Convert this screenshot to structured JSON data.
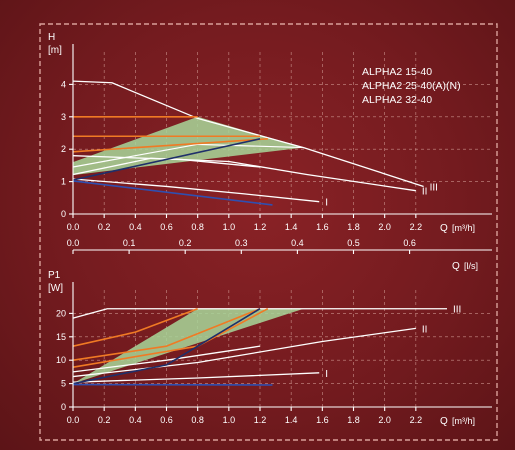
{
  "colors": {
    "background": "#741b1f",
    "zone_fill": "#a8d89a",
    "curve_white": "#ffffff",
    "curve_orange": "#f07a24",
    "curve_blue": "#2f4fb0",
    "curve_navy": "#1f2f6a"
  },
  "legend": [
    "ALPHA2 15-40",
    "ALPHA2 25-40(A)(N)",
    "ALPHA2 32-40"
  ],
  "chart_data": [
    {
      "type": "line",
      "ylabel": "H",
      "yunit": "[m]",
      "xlabel": "Q",
      "xunit": "[m³/h]",
      "x2label": "Q",
      "x2unit": "[l/s]",
      "xlim": [
        0,
        2.4
      ],
      "ylim": [
        0,
        5
      ],
      "x2lim": [
        0,
        0.6667
      ],
      "xticks": [
        "0.0",
        "0.2",
        "0.4",
        "0.6",
        "0.8",
        "1.0",
        "1.2",
        "1.4",
        "1.6",
        "1.8",
        "2.0",
        "2.2"
      ],
      "xtick_values": [
        0,
        0.2,
        0.4,
        0.6,
        0.8,
        1.0,
        1.2,
        1.4,
        1.6,
        1.8,
        2.0,
        2.2
      ],
      "yticks": [
        "0",
        "1",
        "2",
        "3",
        "4"
      ],
      "ytick_values": [
        0,
        1,
        2,
        3,
        4
      ],
      "x2ticks": [
        "0.0",
        "0.1",
        "0.2",
        "0.3",
        "0.4",
        "0.5",
        "0.6"
      ],
      "x2tick_values": [
        0,
        0.1,
        0.2,
        0.3,
        0.4,
        0.5,
        0.6
      ],
      "shaded_zone": [
        [
          0,
          1.2
        ],
        [
          0,
          1.6
        ],
        [
          0.8,
          3.0
        ],
        [
          1.48,
          2.05
        ]
      ],
      "zone_inner": [
        [
          0,
          1.45
        ],
        [
          0.8,
          2.15
        ],
        [
          1.48,
          2.05
        ]
      ],
      "series": [
        {
          "name": "III",
          "color": "white",
          "points": [
            [
              0,
              4.1
            ],
            [
              0.25,
              4.05
            ],
            [
              0.8,
              2.95
            ],
            [
              1.48,
              2.05
            ],
            [
              2.25,
              0.85
            ]
          ]
        },
        {
          "name": "II",
          "color": "white",
          "points": [
            [
              0,
              1.22
            ],
            [
              0.5,
              1.72
            ],
            [
              1.0,
              1.62
            ],
            [
              1.5,
              1.22
            ],
            [
              2.2,
              0.72
            ]
          ]
        },
        {
          "name": "I",
          "color": "white",
          "points": [
            [
              0,
              1.08
            ],
            [
              0.6,
              0.85
            ],
            [
              1.1,
              0.62
            ],
            [
              1.58,
              0.38
            ]
          ]
        },
        {
          "name": "",
          "color": "orange",
          "points": [
            [
              0,
              3.0
            ],
            [
              0.8,
              3.0
            ]
          ]
        },
        {
          "name": "",
          "color": "orange",
          "points": [
            [
              0,
              2.4
            ],
            [
              1.2,
              2.4
            ]
          ]
        },
        {
          "name": "",
          "color": "orange",
          "points": [
            [
              0,
              1.92
            ],
            [
              1.25,
              2.32
            ]
          ]
        },
        {
          "name": "",
          "color": "white",
          "points": [
            [
              0,
              1.8
            ],
            [
              0.7,
              1.68
            ],
            [
              1.2,
              1.45
            ]
          ]
        },
        {
          "name": "",
          "color": "navy",
          "points": [
            [
              0,
              1.05
            ],
            [
              1.2,
              2.32
            ]
          ]
        },
        {
          "name": "",
          "color": "blue",
          "points": [
            [
              0,
              1.02
            ],
            [
              1.28,
              0.28
            ]
          ]
        }
      ]
    },
    {
      "type": "line",
      "ylabel": "P1",
      "yunit": "[W]",
      "xlabel": "Q",
      "xunit": "[m³/h]",
      "xlim": [
        0,
        2.4
      ],
      "ylim": [
        0,
        25
      ],
      "xticks": [
        "0.0",
        "0.2",
        "0.4",
        "0.6",
        "0.8",
        "1.0",
        "1.2",
        "1.4",
        "1.6",
        "1.8",
        "2.0",
        "2.2"
      ],
      "xtick_values": [
        0,
        0.2,
        0.4,
        0.6,
        0.8,
        1.0,
        1.2,
        1.4,
        1.6,
        1.8,
        2.0,
        2.2
      ],
      "yticks": [
        "0",
        "5",
        "10",
        "15",
        "20"
      ],
      "ytick_values": [
        0,
        5,
        10,
        15,
        20
      ],
      "shaded_zone": [
        [
          0,
          5
        ],
        [
          0.8,
          21
        ],
        [
          1.48,
          21
        ],
        [
          0,
          5
        ]
      ],
      "series": [
        {
          "name": "III",
          "color": "white",
          "points": [
            [
              0,
              19
            ],
            [
              0.22,
              21
            ],
            [
              2.4,
              21
            ]
          ]
        },
        {
          "name": "II",
          "color": "white",
          "points": [
            [
              0,
              6.5
            ],
            [
              0.8,
              9.5
            ],
            [
              1.6,
              14
            ],
            [
              2.2,
              16.8
            ]
          ]
        },
        {
          "name": "I",
          "color": "white",
          "points": [
            [
              0,
              5.3
            ],
            [
              0.8,
              6.2
            ],
            [
              1.58,
              7.3
            ]
          ]
        },
        {
          "name": "",
          "color": "orange",
          "points": [
            [
              0,
              13
            ],
            [
              0.4,
              16
            ],
            [
              0.8,
              21
            ]
          ]
        },
        {
          "name": "",
          "color": "orange",
          "points": [
            [
              0,
              10
            ],
            [
              0.6,
              13
            ],
            [
              1.2,
              21
            ]
          ]
        },
        {
          "name": "",
          "color": "orange",
          "points": [
            [
              0,
              8.5
            ],
            [
              0.8,
              13
            ],
            [
              1.25,
              21
            ]
          ]
        },
        {
          "name": "",
          "color": "white",
          "points": [
            [
              0,
              7.5
            ],
            [
              0.6,
              10
            ],
            [
              1.2,
              13
            ]
          ]
        },
        {
          "name": "",
          "color": "navy",
          "points": [
            [
              0,
              5
            ],
            [
              0.6,
              9
            ],
            [
              1.2,
              21
            ]
          ]
        },
        {
          "name": "",
          "color": "blue",
          "points": [
            [
              0,
              4.8
            ],
            [
              1.28,
              4.7
            ]
          ]
        }
      ]
    }
  ]
}
